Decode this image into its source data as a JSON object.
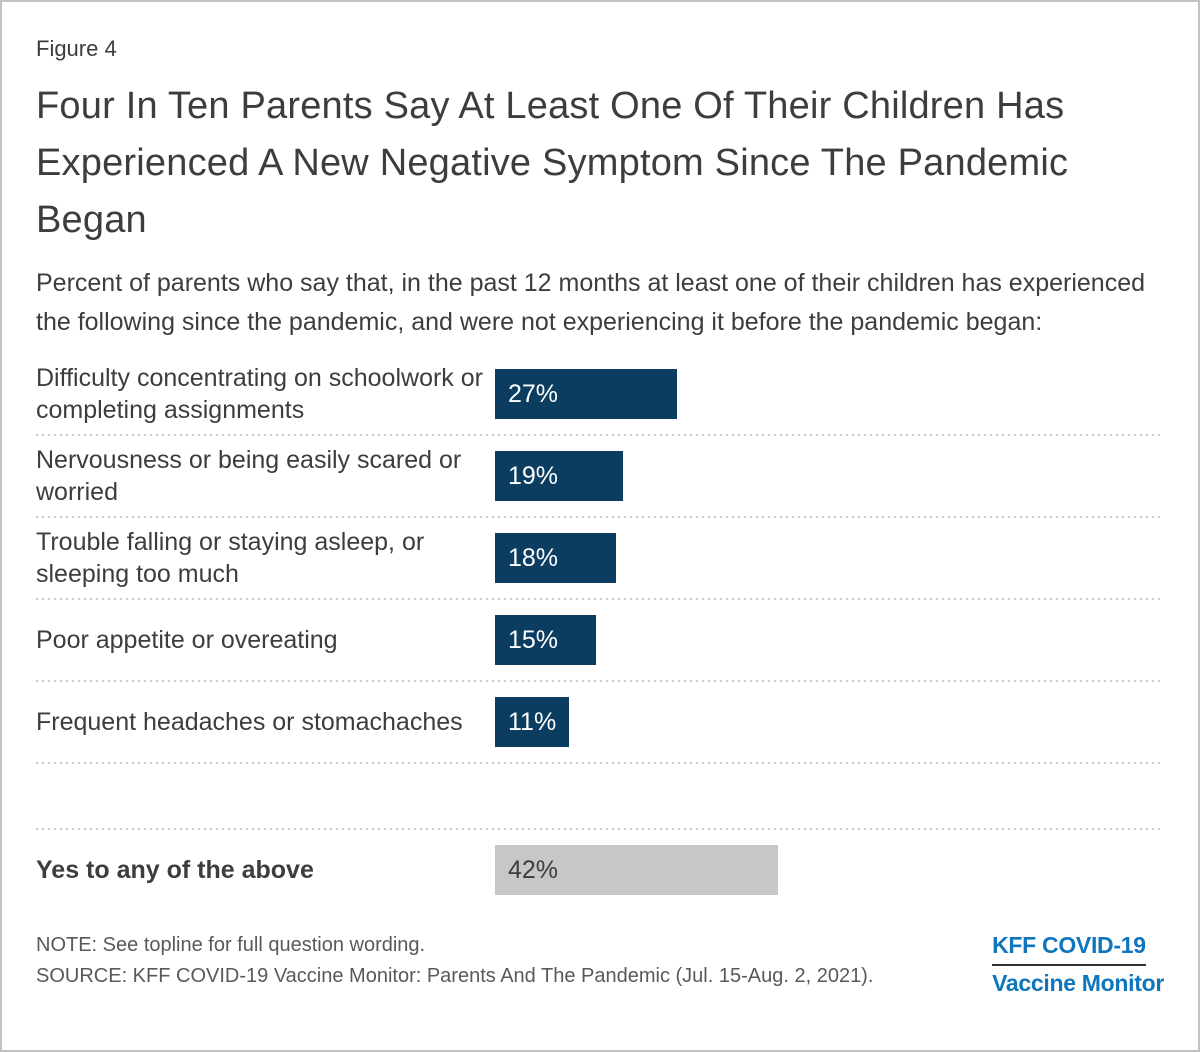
{
  "figure_label": "Figure 4",
  "title": "Four In Ten Parents Say At Least One Of Their Children Has Experienced A New Negative Symptom Since The Pandemic Began",
  "subtitle": "Percent of parents who say that, in the past 12 months at least one of their children has experienced the following since the pandemic, and were not experiencing it before the pandemic began:",
  "chart_data": {
    "type": "bar",
    "orientation": "horizontal",
    "title": "Four In Ten Parents Say At Least One Of Their Children Has Experienced A New Negative Symptom Since The Pandemic Began",
    "xlabel": "",
    "ylabel": "",
    "xlim": [
      0,
      100
    ],
    "grid": false,
    "legend": false,
    "data_labels": true,
    "value_suffix": "%",
    "categories": [
      "Difficulty concentrating on schoolwork or completing assignments",
      "Nervousness or being easily scared or worried",
      "Trouble falling or staying asleep, or sleeping too much",
      "Poor appetite or overeating",
      "Frequent headaches or stomachaches"
    ],
    "values": [
      27,
      19,
      18,
      15,
      11
    ],
    "rows": [
      {
        "label": "Difficulty concentrating on schoolwork or completing assignments",
        "value": 27
      },
      {
        "label": "Nervousness or being easily scared or worried",
        "value": 19
      },
      {
        "label": "Trouble falling or staying asleep, or sleeping too much",
        "value": 18
      },
      {
        "label": "Poor appetite or overeating",
        "value": 15
      },
      {
        "label": "Frequent headaches or stomachaches",
        "value": 11
      }
    ],
    "summary_row": {
      "label": "Yes to any of the above",
      "value": 42
    },
    "colors": {
      "bar": "#0b3d61",
      "bar_text": "#ffffff",
      "summary_bar": "#c7c7c7",
      "summary_text": "#3d3d3d",
      "separator": "#cbcbcb"
    }
  },
  "footer": {
    "note": "NOTE: See topline for full question wording.",
    "source": "SOURCE: KFF COVID-19 Vaccine Monitor: Parents And The Pandemic (Jul. 15-Aug. 2, 2021)."
  },
  "logo": {
    "line1": "KFF COVID-19",
    "line2": "Vaccine Monitor",
    "color": "#0d76bd"
  }
}
